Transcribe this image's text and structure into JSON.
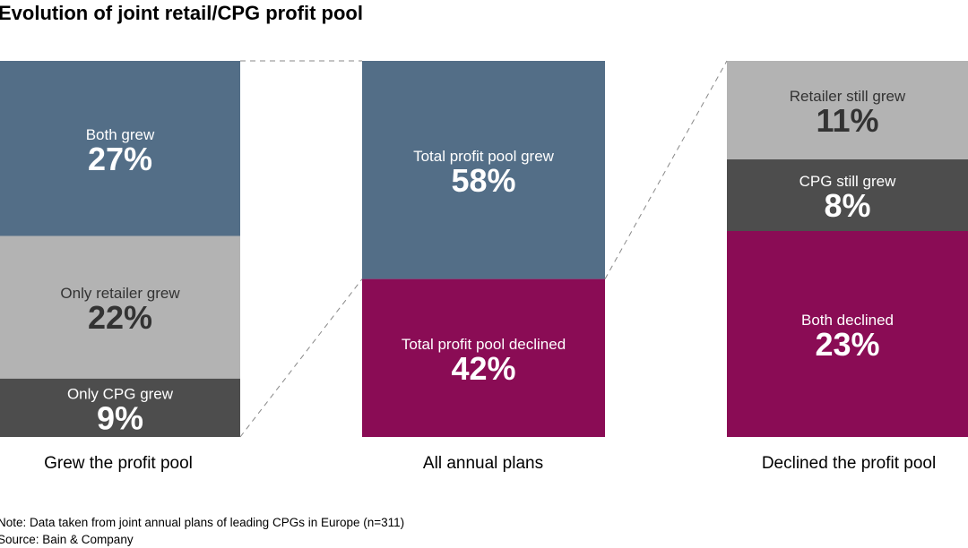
{
  "chart_data": {
    "type": "bar-of-bar (stacked)",
    "title": "Evolution of joint retail/CPG profit pool",
    "unit": "%",
    "colors": {
      "blue": "#536e87",
      "light_gray": "#b3b3b3",
      "dark_gray": "#4d4d4d",
      "magenta": "#8a0c55"
    },
    "bars": [
      {
        "category": "Grew the profit pool",
        "segments": [
          {
            "label": "Both grew",
            "value": 27,
            "display": "27%",
            "color": "#536e87",
            "text": "#ffffff"
          },
          {
            "label": "Only retailer grew",
            "value": 22,
            "display": "22%",
            "color": "#b3b3b3",
            "text": "#333333"
          },
          {
            "label": "Only CPG grew",
            "value": 9,
            "display": "9%",
            "color": "#4d4d4d",
            "text": "#ffffff"
          }
        ]
      },
      {
        "category": "All annual plans",
        "segments": [
          {
            "label": "Total profit pool grew",
            "value": 58,
            "display": "58%",
            "color": "#536e87",
            "text": "#ffffff"
          },
          {
            "label": "Total profit pool declined",
            "value": 42,
            "display": "42%",
            "color": "#8a0c55",
            "text": "#ffffff"
          }
        ]
      },
      {
        "category": "Declined the profit pool",
        "segments": [
          {
            "label": "Retailer still grew",
            "value": 11,
            "display": "11%",
            "color": "#b3b3b3",
            "text": "#333333"
          },
          {
            "label": "CPG still grew",
            "value": 8,
            "display": "8%",
            "color": "#4d4d4d",
            "text": "#ffffff"
          },
          {
            "label": "Both declined",
            "value": 23,
            "display": "23%",
            "color": "#8a0c55",
            "text": "#ffffff"
          }
        ]
      }
    ]
  },
  "footer": {
    "note": "Note: Data taken from joint annual plans of leading CPGs in Europe (n=311)",
    "source": "Source: Bain & Company"
  }
}
